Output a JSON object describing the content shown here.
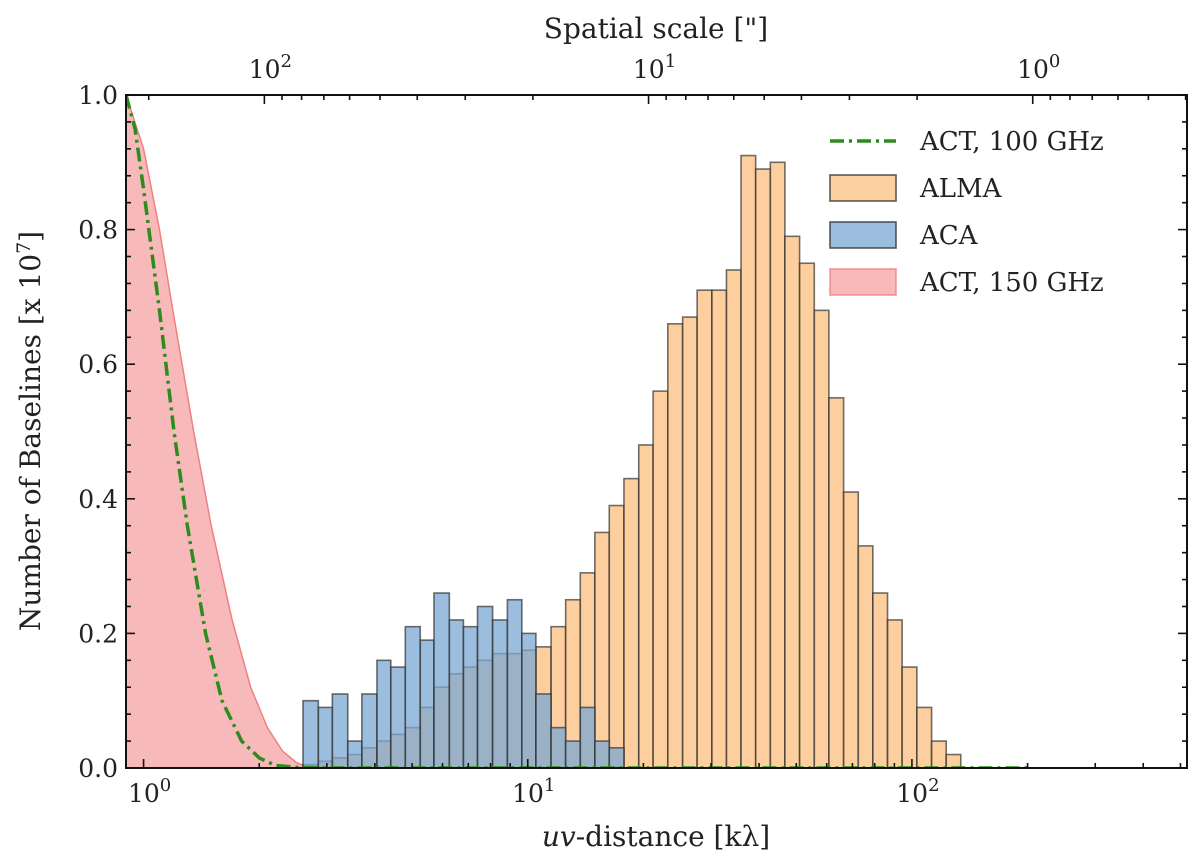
{
  "chart_data": {
    "type": "bar",
    "title": "",
    "xlabel_italic": "uv",
    "xlabel_rest": "-distance [kλ]",
    "ylabel": "Number of Baselines [x 10",
    "ylabel_exp": "7",
    "ylabel_close": "]",
    "top_axis_label": "Spatial scale [\"]",
    "xscale": "log",
    "xlim": [
      0.9,
      520
    ],
    "ylim": [
      0,
      1.0
    ],
    "grid": false,
    "legend_position": "top-right",
    "x_ticks": [
      {
        "value": 1,
        "base": "10",
        "exp": "0"
      },
      {
        "value": 10,
        "base": "10",
        "exp": "1"
      },
      {
        "value": 100,
        "base": "10",
        "exp": "2"
      }
    ],
    "y_ticks": [
      {
        "value": 0.0,
        "label": "0.0"
      },
      {
        "value": 0.2,
        "label": "0.2"
      },
      {
        "value": 0.4,
        "label": "0.4"
      },
      {
        "value": 0.6,
        "label": "0.6"
      },
      {
        "value": 0.8,
        "label": "0.8"
      },
      {
        "value": 1.0,
        "label": "1.0"
      }
    ],
    "top_ticks": [
      {
        "value": 100,
        "base": "10",
        "exp": "2"
      },
      {
        "value": 10,
        "base": "10",
        "exp": "1"
      },
      {
        "value": 1,
        "base": "10",
        "exp": "0"
      }
    ],
    "top_axis_uv_per_arcsec_value": 206.265,
    "series": [
      {
        "name": "ACT, 150 GHz",
        "kind": "area",
        "color": "#f08080",
        "x": [
          0.9,
          1.0,
          1.1,
          1.2,
          1.35,
          1.5,
          1.7,
          1.9,
          2.1,
          2.3,
          2.5,
          2.7
        ],
        "values": [
          1.0,
          0.92,
          0.8,
          0.67,
          0.5,
          0.36,
          0.22,
          0.12,
          0.06,
          0.025,
          0.008,
          0.0
        ]
      },
      {
        "name": "ACT, 100 GHz",
        "kind": "line",
        "color": "#2e8b1e",
        "x": [
          0.9,
          0.95,
          1.0,
          1.1,
          1.2,
          1.3,
          1.45,
          1.6,
          1.8,
          2.0,
          2.2,
          2.5,
          3.0,
          5.0,
          20,
          200
        ],
        "values": [
          1.0,
          0.95,
          0.86,
          0.68,
          0.5,
          0.36,
          0.2,
          0.1,
          0.04,
          0.015,
          0.004,
          0.001,
          0.0,
          0.0,
          0.0,
          0.0
        ]
      },
      {
        "name": "ALMA",
        "kind": "hist",
        "color": "#fdbf7e",
        "bin_edges": [
          2.4,
          2.6,
          2.85,
          3.1,
          3.4,
          3.7,
          4.05,
          4.4,
          4.8,
          5.25,
          5.7,
          6.25,
          6.8,
          7.4,
          8.1,
          8.85,
          9.65,
          10.5,
          11.5,
          12.55,
          13.7,
          14.95,
          16.3,
          17.8,
          19.45,
          21.2,
          23.15,
          25.3,
          27.6,
          30.15,
          32.9,
          35.9,
          39.2,
          42.8,
          46.7,
          51.0,
          55.7,
          60.8,
          66.4,
          72.5,
          79.1,
          86.4,
          94.3,
          103,
          112.5,
          122.8,
          134
        ],
        "values": [
          0.0,
          0.005,
          0.01,
          0.015,
          0.02,
          0.03,
          0.04,
          0.05,
          0.06,
          0.09,
          0.12,
          0.14,
          0.15,
          0.16,
          0.17,
          0.17,
          0.175,
          0.18,
          0.21,
          0.25,
          0.29,
          0.35,
          0.39,
          0.43,
          0.48,
          0.56,
          0.66,
          0.67,
          0.71,
          0.71,
          0.74,
          0.91,
          0.89,
          0.9,
          0.79,
          0.75,
          0.68,
          0.55,
          0.41,
          0.33,
          0.26,
          0.22,
          0.15,
          0.09,
          0.04,
          0.02
        ]
      },
      {
        "name": "ACA",
        "kind": "hist",
        "color": "#7aa7d3",
        "bin_edges": [
          2.6,
          2.85,
          3.1,
          3.4,
          3.7,
          4.05,
          4.4,
          4.8,
          5.25,
          5.7,
          6.25,
          6.8,
          7.4,
          8.1,
          8.85,
          9.65,
          10.5,
          11.5,
          12.55,
          13.7,
          14.95,
          16.3,
          17.8
        ],
        "values": [
          0.1,
          0.09,
          0.11,
          0.04,
          0.11,
          0.16,
          0.15,
          0.21,
          0.19,
          0.26,
          0.22,
          0.21,
          0.24,
          0.22,
          0.25,
          0.2,
          0.11,
          0.06,
          0.04,
          0.09,
          0.04,
          0.03
        ]
      }
    ],
    "legend": [
      {
        "label": "ACT, 100 GHz",
        "style": "line",
        "color": "#2e8b1e"
      },
      {
        "label": "ALMA",
        "style": "patch",
        "color": "#fdbf7e"
      },
      {
        "label": "ACA",
        "style": "patch",
        "color": "#7aa7d3"
      },
      {
        "label": "ACT, 150 GHz",
        "style": "patch",
        "color": "#f08080"
      }
    ]
  }
}
